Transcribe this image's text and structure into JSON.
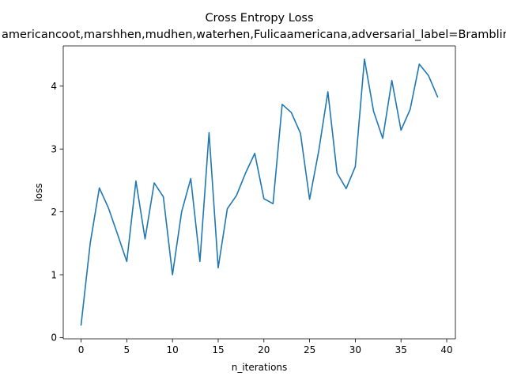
{
  "chart_data": {
    "type": "line",
    "title": "Cross Entropy Loss",
    "subtitle": "americancoot,marshhen,mudhen,waterhen,Fulicaamericana,adversarial_label=Brambling",
    "xlabel": "n_iterations",
    "ylabel": "loss",
    "xlim": [
      -1.95,
      40.95
    ],
    "ylim": [
      -0.02,
      4.64
    ],
    "xticks": [
      0,
      5,
      10,
      15,
      20,
      25,
      30,
      35,
      40
    ],
    "yticks": [
      0,
      1,
      2,
      3,
      4
    ],
    "grid": false,
    "line_color": "#1f77b4",
    "series": [
      {
        "x": [
          0,
          1,
          2,
          3,
          4,
          5,
          6,
          7,
          8,
          9,
          10,
          11,
          12,
          13,
          14,
          15,
          16,
          17,
          18,
          19,
          20,
          21,
          22,
          23,
          24,
          25,
          26,
          27,
          28,
          29,
          30,
          31,
          32,
          33,
          34,
          35,
          36,
          37,
          38,
          39
        ],
        "values": [
          0.2,
          1.5,
          2.38,
          2.06,
          1.64,
          1.21,
          2.49,
          1.57,
          2.46,
          2.24,
          1.0,
          2.0,
          2.53,
          1.21,
          3.26,
          1.11,
          2.05,
          2.26,
          2.62,
          2.93,
          2.21,
          2.13,
          3.71,
          3.58,
          3.25,
          2.2,
          2.97,
          3.91,
          2.62,
          2.37,
          2.72,
          4.43,
          3.6,
          3.17,
          4.09,
          3.3,
          3.63,
          4.35,
          4.17,
          3.83
        ]
      }
    ]
  }
}
